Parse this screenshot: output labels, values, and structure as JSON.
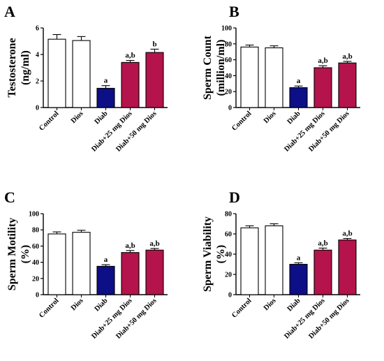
{
  "colors": {
    "control": "#ffffff",
    "dios": "#ffffff",
    "diab": "#0c0f86",
    "dios25": "#b5134b",
    "dios50": "#b5134b",
    "stroke": "#000000"
  },
  "chart_data": [
    {
      "type": "bar",
      "panel_label": "A",
      "ylabel_lines": [
        "Testosterone",
        "(ng/ml)"
      ],
      "categories": [
        "Control",
        "Dios",
        "Diab",
        "Diab+25 mg Dios",
        "Diab+50 mg Dios"
      ],
      "values": [
        5.15,
        5.05,
        1.45,
        3.4,
        4.15
      ],
      "errors": [
        0.35,
        0.3,
        0.2,
        0.15,
        0.25
      ],
      "significance": [
        "",
        "",
        "a",
        "a,b",
        "b"
      ],
      "ylim": [
        0,
        6
      ],
      "yticks": [
        0,
        2,
        4,
        6
      ]
    },
    {
      "type": "bar",
      "panel_label": "B",
      "ylabel_lines": [
        "Sperm Count",
        "(million/ml)"
      ],
      "categories": [
        "Control",
        "Dios",
        "Diab",
        "Diab+25 mg Dios",
        "Diab+50 mg Dios"
      ],
      "values": [
        76,
        75,
        25,
        50,
        56
      ],
      "errors": [
        2.5,
        2.5,
        2,
        2.5,
        2
      ],
      "significance": [
        "",
        "",
        "a",
        "a,b",
        "a,b"
      ],
      "ylim": [
        0,
        100
      ],
      "yticks": [
        0,
        20,
        40,
        60,
        80,
        100
      ]
    },
    {
      "type": "bar",
      "panel_label": "C",
      "ylabel_lines": [
        "Sperm Motility",
        "(%)"
      ],
      "categories": [
        "Control",
        "Dios",
        "Diab",
        "Diab+25 mg Dios",
        "Diab+50 mg Dios"
      ],
      "values": [
        75,
        77,
        35,
        52,
        55
      ],
      "errors": [
        2.5,
        2.5,
        2,
        2.5,
        2
      ],
      "significance": [
        "",
        "",
        "a",
        "a,b",
        "a,b"
      ],
      "ylim": [
        0,
        100
      ],
      "yticks": [
        0,
        20,
        40,
        60,
        80,
        100
      ]
    },
    {
      "type": "bar",
      "panel_label": "D",
      "ylabel_lines": [
        "Sperm Viability",
        "(%)"
      ],
      "categories": [
        "Control",
        "Dios",
        "Diab",
        "Diab+25 mg Dios",
        "Diab+50 mg Dios"
      ],
      "values": [
        66,
        68,
        30,
        44,
        54
      ],
      "errors": [
        2,
        2,
        1.5,
        2,
        1.5
      ],
      "significance": [
        "",
        "",
        "a",
        "a,b",
        "a,b"
      ],
      "ylim": [
        0,
        80
      ],
      "yticks": [
        0,
        20,
        40,
        60,
        80
      ]
    }
  ]
}
